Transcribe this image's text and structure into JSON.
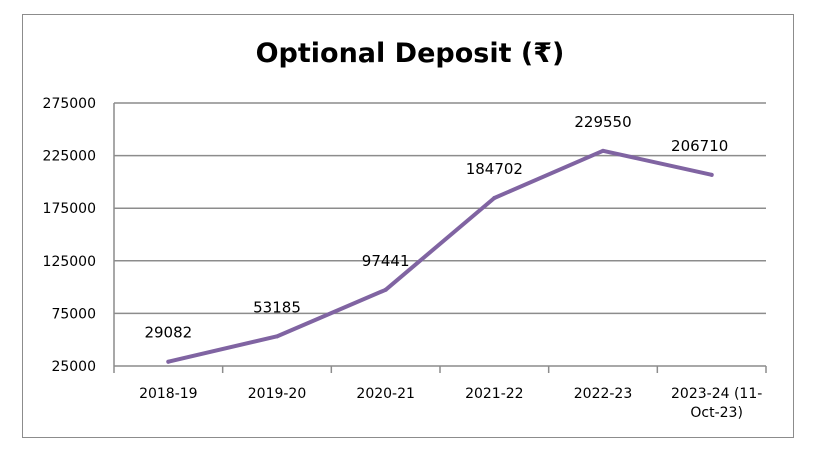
{
  "chart_data": {
    "type": "line",
    "title": "Optional Deposit (₹)",
    "xlabel": "",
    "ylabel": "",
    "categories": [
      "2018-19",
      "2019-20",
      "2020-21",
      "2021-22",
      "2022-23",
      "2023-24 (11-Oct-23)"
    ],
    "category_lines": [
      [
        "2018-19"
      ],
      [
        "2019-20"
      ],
      [
        "2020-21"
      ],
      [
        "2021-22"
      ],
      [
        "2022-23"
      ],
      [
        "2023-24 (11-",
        "Oct-23)"
      ]
    ],
    "series": [
      {
        "values": [
          29082,
          53185,
          97441,
          184702,
          229550,
          206710
        ],
        "labels": [
          "29082",
          "53185",
          "97441",
          "184702",
          "229550",
          "206710"
        ]
      }
    ],
    "yticks": [
      "275000",
      "225000",
      "175000",
      "125000",
      "75000",
      "25000"
    ],
    "ytick_values": [
      275000,
      225000,
      175000,
      125000,
      75000,
      25000
    ],
    "ylim": [
      25000,
      275000
    ],
    "grid": true,
    "line_color": "#8064a2",
    "legend": "none"
  }
}
